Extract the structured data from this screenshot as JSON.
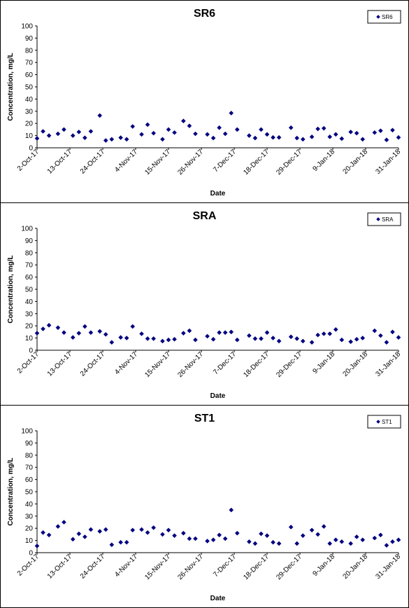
{
  "chart_data": [
    {
      "type": "scatter",
      "title": "SR6",
      "xlabel": "Date",
      "ylabel": "Concentration, mg/L",
      "ylim": [
        0,
        100
      ],
      "yticks": [
        0,
        10,
        20,
        30,
        40,
        50,
        60,
        70,
        80,
        90,
        100
      ],
      "xlim": [
        "2017-10-02",
        "2018-01-31"
      ],
      "xtick_labels": [
        "2-Oct-17",
        "13-Oct-17",
        "24-Oct-17",
        "4-Nov-17",
        "15-Nov-17",
        "26-Nov-17",
        "7-Dec-17",
        "18-Dec-17",
        "29-Dec-17",
        "9-Jan-18",
        "20-Jan-18",
        "31-Jan-18"
      ],
      "grid": false,
      "legend_position": "top-right",
      "marker_color": "#000080",
      "series": [
        {
          "name": "SR6",
          "points": [
            [
              "2017-10-02",
              7.7
            ],
            [
              "2017-10-04",
              13.5
            ],
            [
              "2017-10-06",
              10.0
            ],
            [
              "2017-10-09",
              11.5
            ],
            [
              "2017-10-11",
              15.0
            ],
            [
              "2017-10-14",
              10.0
            ],
            [
              "2017-10-16",
              13.0
            ],
            [
              "2017-10-18",
              8.2
            ],
            [
              "2017-10-20",
              13.5
            ],
            [
              "2017-10-23",
              26.5
            ],
            [
              "2017-10-25",
              6.0
            ],
            [
              "2017-10-27",
              7.0
            ],
            [
              "2017-10-30",
              8.3
            ],
            [
              "2017-11-01",
              7.0
            ],
            [
              "2017-11-03",
              17.5
            ],
            [
              "2017-11-06",
              11.0
            ],
            [
              "2017-11-08",
              19.0
            ],
            [
              "2017-11-10",
              12.0
            ],
            [
              "2017-11-13",
              7.0
            ],
            [
              "2017-11-15",
              15.0
            ],
            [
              "2017-11-17",
              12.5
            ],
            [
              "2017-11-20",
              22.0
            ],
            [
              "2017-11-22",
              18.0
            ],
            [
              "2017-11-24",
              11.5
            ],
            [
              "2017-11-28",
              11.0
            ],
            [
              "2017-11-30",
              8.0
            ],
            [
              "2017-12-02",
              16.5
            ],
            [
              "2017-12-04",
              11.5
            ],
            [
              "2017-12-06",
              28.5
            ],
            [
              "2017-12-08",
              15.0
            ],
            [
              "2017-12-12",
              10.0
            ],
            [
              "2017-12-14",
              8.0
            ],
            [
              "2017-12-16",
              15.0
            ],
            [
              "2017-12-18",
              11.0
            ],
            [
              "2017-12-20",
              8.5
            ],
            [
              "2017-12-22",
              8.5
            ],
            [
              "2017-12-26",
              16.5
            ],
            [
              "2017-12-28",
              8.0
            ],
            [
              "2017-12-30",
              7.0
            ],
            [
              "2018-01-02",
              9.0
            ],
            [
              "2018-01-04",
              15.5
            ],
            [
              "2018-01-06",
              16.0
            ],
            [
              "2018-01-08",
              9.0
            ],
            [
              "2018-01-10",
              11.0
            ],
            [
              "2018-01-12",
              7.5
            ],
            [
              "2018-01-15",
              13.0
            ],
            [
              "2018-01-17",
              12.0
            ],
            [
              "2018-01-19",
              7.0
            ],
            [
              "2018-01-23",
              12.5
            ],
            [
              "2018-01-25",
              14.0
            ],
            [
              "2018-01-27",
              6.5
            ],
            [
              "2018-01-29",
              14.5
            ],
            [
              "2018-01-31",
              8.5
            ]
          ]
        }
      ]
    },
    {
      "type": "scatter",
      "title": "SRA",
      "xlabel": "Date",
      "ylabel": "Concentration, mg/L",
      "ylim": [
        0,
        100
      ],
      "yticks": [
        0,
        10,
        20,
        30,
        40,
        50,
        60,
        70,
        80,
        90,
        100
      ],
      "xlim": [
        "2017-10-02",
        "2018-01-31"
      ],
      "xtick_labels": [
        "2-Oct-17",
        "13-Oct-17",
        "24-Oct-17",
        "4-Nov-17",
        "15-Nov-17",
        "26-Nov-17",
        "7-Dec-17",
        "18-Dec-17",
        "29-Dec-17",
        "9-Jan-18",
        "20-Jan-18",
        "31-Jan-18"
      ],
      "grid": false,
      "legend_position": "top-right",
      "marker_color": "#000080",
      "series": [
        {
          "name": "SRA",
          "points": [
            [
              "2017-10-02",
              14.0
            ],
            [
              "2017-10-04",
              17.5
            ],
            [
              "2017-10-06",
              20.5
            ],
            [
              "2017-10-09",
              18.5
            ],
            [
              "2017-10-11",
              14.5
            ],
            [
              "2017-10-14",
              10.5
            ],
            [
              "2017-10-16",
              14.0
            ],
            [
              "2017-10-18",
              19.5
            ],
            [
              "2017-10-20",
              14.5
            ],
            [
              "2017-10-23",
              15.5
            ],
            [
              "2017-10-25",
              13.0
            ],
            [
              "2017-10-27",
              6.5
            ],
            [
              "2017-10-30",
              10.5
            ],
            [
              "2017-11-01",
              10.0
            ],
            [
              "2017-11-03",
              19.5
            ],
            [
              "2017-11-06",
              13.5
            ],
            [
              "2017-11-08",
              9.5
            ],
            [
              "2017-11-10",
              9.5
            ],
            [
              "2017-11-13",
              7.5
            ],
            [
              "2017-11-15",
              8.5
            ],
            [
              "2017-11-17",
              9.0
            ],
            [
              "2017-11-20",
              14.0
            ],
            [
              "2017-11-22",
              16.0
            ],
            [
              "2017-11-24",
              8.5
            ],
            [
              "2017-11-28",
              11.5
            ],
            [
              "2017-11-30",
              9.0
            ],
            [
              "2017-12-02",
              14.5
            ],
            [
              "2017-12-04",
              14.5
            ],
            [
              "2017-12-06",
              15.0
            ],
            [
              "2017-12-08",
              8.5
            ],
            [
              "2017-12-12",
              12.0
            ],
            [
              "2017-12-14",
              9.5
            ],
            [
              "2017-12-16",
              9.5
            ],
            [
              "2017-12-18",
              14.5
            ],
            [
              "2017-12-20",
              10.0
            ],
            [
              "2017-12-22",
              7.5
            ],
            [
              "2017-12-26",
              11.0
            ],
            [
              "2017-12-28",
              9.5
            ],
            [
              "2017-12-30",
              7.5
            ],
            [
              "2018-01-02",
              6.5
            ],
            [
              "2018-01-04",
              12.5
            ],
            [
              "2018-01-06",
              13.5
            ],
            [
              "2018-01-08",
              13.5
            ],
            [
              "2018-01-10",
              17.0
            ],
            [
              "2018-01-12",
              8.5
            ],
            [
              "2018-01-15",
              7.0
            ],
            [
              "2018-01-17",
              9.0
            ],
            [
              "2018-01-19",
              10.0
            ],
            [
              "2018-01-23",
              16.0
            ],
            [
              "2018-01-25",
              12.0
            ],
            [
              "2018-01-27",
              6.5
            ],
            [
              "2018-01-29",
              15.0
            ],
            [
              "2018-01-31",
              10.5
            ]
          ]
        }
      ]
    },
    {
      "type": "scatter",
      "title": "ST1",
      "xlabel": "Date",
      "ylabel": "Concentration, mg/L",
      "ylim": [
        0,
        100
      ],
      "yticks": [
        0,
        10,
        20,
        30,
        40,
        50,
        60,
        70,
        80,
        90,
        100
      ],
      "xlim": [
        "2017-10-02",
        "2018-01-31"
      ],
      "xtick_labels": [
        "2-Oct-17",
        "13-Oct-17",
        "24-Oct-17",
        "4-Nov-17",
        "15-Nov-17",
        "26-Nov-17",
        "7-Dec-17",
        "18-Dec-17",
        "29-Dec-17",
        "9-Jan-18",
        "20-Jan-18",
        "31-Jan-18"
      ],
      "grid": false,
      "legend_position": "top-right",
      "marker_color": "#000080",
      "series": [
        {
          "name": "ST1",
          "points": [
            [
              "2017-10-02",
              5.5
            ],
            [
              "2017-10-04",
              16.5
            ],
            [
              "2017-10-06",
              14.5
            ],
            [
              "2017-10-09",
              21.5
            ],
            [
              "2017-10-11",
              25.0
            ],
            [
              "2017-10-14",
              11.0
            ],
            [
              "2017-10-16",
              15.5
            ],
            [
              "2017-10-18",
              13.0
            ],
            [
              "2017-10-20",
              19.0
            ],
            [
              "2017-10-23",
              17.5
            ],
            [
              "2017-10-25",
              19.0
            ],
            [
              "2017-10-27",
              6.5
            ],
            [
              "2017-10-30",
              8.5
            ],
            [
              "2017-11-01",
              8.5
            ],
            [
              "2017-11-03",
              18.5
            ],
            [
              "2017-11-06",
              19.0
            ],
            [
              "2017-11-08",
              16.5
            ],
            [
              "2017-11-10",
              20.5
            ],
            [
              "2017-11-13",
              15.0
            ],
            [
              "2017-11-15",
              18.5
            ],
            [
              "2017-11-17",
              14.0
            ],
            [
              "2017-11-20",
              16.0
            ],
            [
              "2017-11-22",
              11.5
            ],
            [
              "2017-11-24",
              11.5
            ],
            [
              "2017-11-28",
              9.5
            ],
            [
              "2017-11-30",
              10.5
            ],
            [
              "2017-12-02",
              14.5
            ],
            [
              "2017-12-04",
              11.5
            ],
            [
              "2017-12-06",
              35.0
            ],
            [
              "2017-12-08",
              16.0
            ],
            [
              "2017-12-12",
              9.0
            ],
            [
              "2017-12-14",
              7.5
            ],
            [
              "2017-12-16",
              15.5
            ],
            [
              "2017-12-18",
              14.0
            ],
            [
              "2017-12-20",
              8.5
            ],
            [
              "2017-12-22",
              7.5
            ],
            [
              "2017-12-26",
              21.0
            ],
            [
              "2017-12-28",
              7.5
            ],
            [
              "2017-12-30",
              14.0
            ],
            [
              "2018-01-02",
              18.5
            ],
            [
              "2018-01-04",
              15.0
            ],
            [
              "2018-01-06",
              21.5
            ],
            [
              "2018-01-08",
              7.5
            ],
            [
              "2018-01-10",
              10.5
            ],
            [
              "2018-01-12",
              9.0
            ],
            [
              "2018-01-15",
              7.5
            ],
            [
              "2018-01-17",
              13.0
            ],
            [
              "2018-01-19",
              10.5
            ],
            [
              "2018-01-23",
              12.0
            ],
            [
              "2018-01-25",
              14.5
            ],
            [
              "2018-01-27",
              6.0
            ],
            [
              "2018-01-29",
              9.0
            ],
            [
              "2018-01-31",
              10.5
            ]
          ]
        }
      ]
    }
  ]
}
